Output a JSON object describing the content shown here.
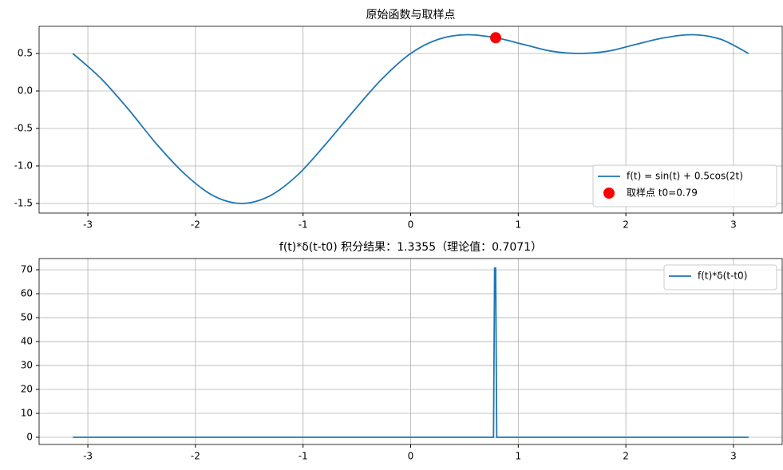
{
  "chart_data": [
    {
      "type": "line",
      "title": "原始函数与取样点",
      "series": [
        {
          "name": "f(t) = sin(t) + 0.5cos(2t)",
          "color": "#1f77b4",
          "x": [
            -3.14,
            -2.88,
            -2.62,
            -2.36,
            -2.09,
            -1.83,
            -1.57,
            -1.31,
            -1.05,
            -0.79,
            -0.52,
            -0.26,
            0,
            0.26,
            0.52,
            0.79,
            1.05,
            1.31,
            1.57,
            1.83,
            2.09,
            2.36,
            2.62,
            2.88,
            3.14
          ],
          "values": [
            0.5,
            0.17,
            -0.25,
            -0.71,
            -1.12,
            -1.4,
            -1.5,
            -1.4,
            -1.12,
            -0.71,
            -0.25,
            0.17,
            0.5,
            0.69,
            0.75,
            0.71,
            0.62,
            0.53,
            0.5,
            0.53,
            0.62,
            0.71,
            0.75,
            0.69,
            0.5
          ]
        },
        {
          "name": "取样点 t0=0.79",
          "color": "#ff0000",
          "type": "scatter",
          "x": [
            0.79
          ],
          "values": [
            0.71
          ]
        }
      ],
      "xlim": [
        -3.453,
        3.453
      ],
      "xticks": [
        -3,
        -2,
        -1,
        0,
        1,
        2,
        3
      ],
      "ylim": [
        -1.628,
        0.862
      ],
      "yticks": [
        -1.5,
        {
          "value": -1,
          "label": "-1.0"
        },
        -0.5,
        {
          "value": 0,
          "label": "0.0"
        },
        0.5
      ],
      "grid": true,
      "legend": "lower right"
    },
    {
      "type": "line",
      "title": "f(t)*δ(t-t0) 积分结果：1.3355（理论值：0.7071）",
      "series": [
        {
          "name": "f(t)*δ(t-t0)",
          "color": "#1f77b4",
          "x": [
            -3.14,
            0.77,
            0.78,
            0.79,
            0.8,
            3.14
          ],
          "values": [
            0,
            0,
            70.71,
            70.71,
            0,
            0
          ]
        }
      ],
      "xlim": [
        -3.453,
        3.453
      ],
      "xticks": [
        -3,
        -2,
        -1,
        0,
        1,
        2,
        3
      ],
      "ylim": [
        -3,
        74.7
      ],
      "yticks": [
        0,
        10,
        20,
        30,
        40,
        50,
        60,
        70
      ],
      "grid": true,
      "legend": "upper right"
    }
  ]
}
